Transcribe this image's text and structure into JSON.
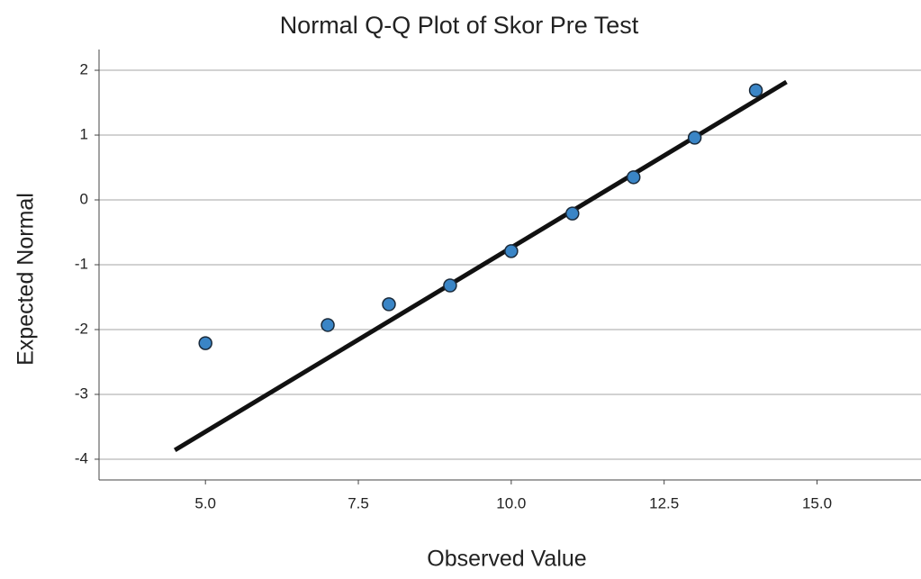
{
  "chart_data": {
    "type": "scatter",
    "title": "Normal Q-Q Plot of Skor Pre Test",
    "x_label": "Observed Value",
    "y_label": "Expected Normal",
    "x": [
      5,
      7,
      8,
      9,
      10,
      11,
      12,
      13,
      14
    ],
    "values": [
      -2.21,
      -1.93,
      -1.61,
      -1.32,
      -0.79,
      -0.21,
      0.35,
      0.96,
      1.69
    ],
    "color": "#3a85c6",
    "reference_line": {
      "x": [
        4.5,
        14.5
      ],
      "y": [
        -3.86,
        1.82
      ],
      "color": "#111111"
    },
    "xlim": [
      3.26,
      16.7
    ],
    "ylim": [
      -4.32,
      2.32
    ],
    "xticks": [
      {
        "value": 5,
        "label": "5.0"
      },
      {
        "value": 7.5,
        "label": "7.5"
      },
      {
        "value": 10,
        "label": "10.0"
      },
      {
        "value": 12.5,
        "label": "12.5"
      },
      {
        "value": 15,
        "label": "15.0"
      }
    ],
    "yticks": [
      -4,
      -3,
      -2,
      -1,
      0,
      1,
      2
    ],
    "grid": true
  }
}
